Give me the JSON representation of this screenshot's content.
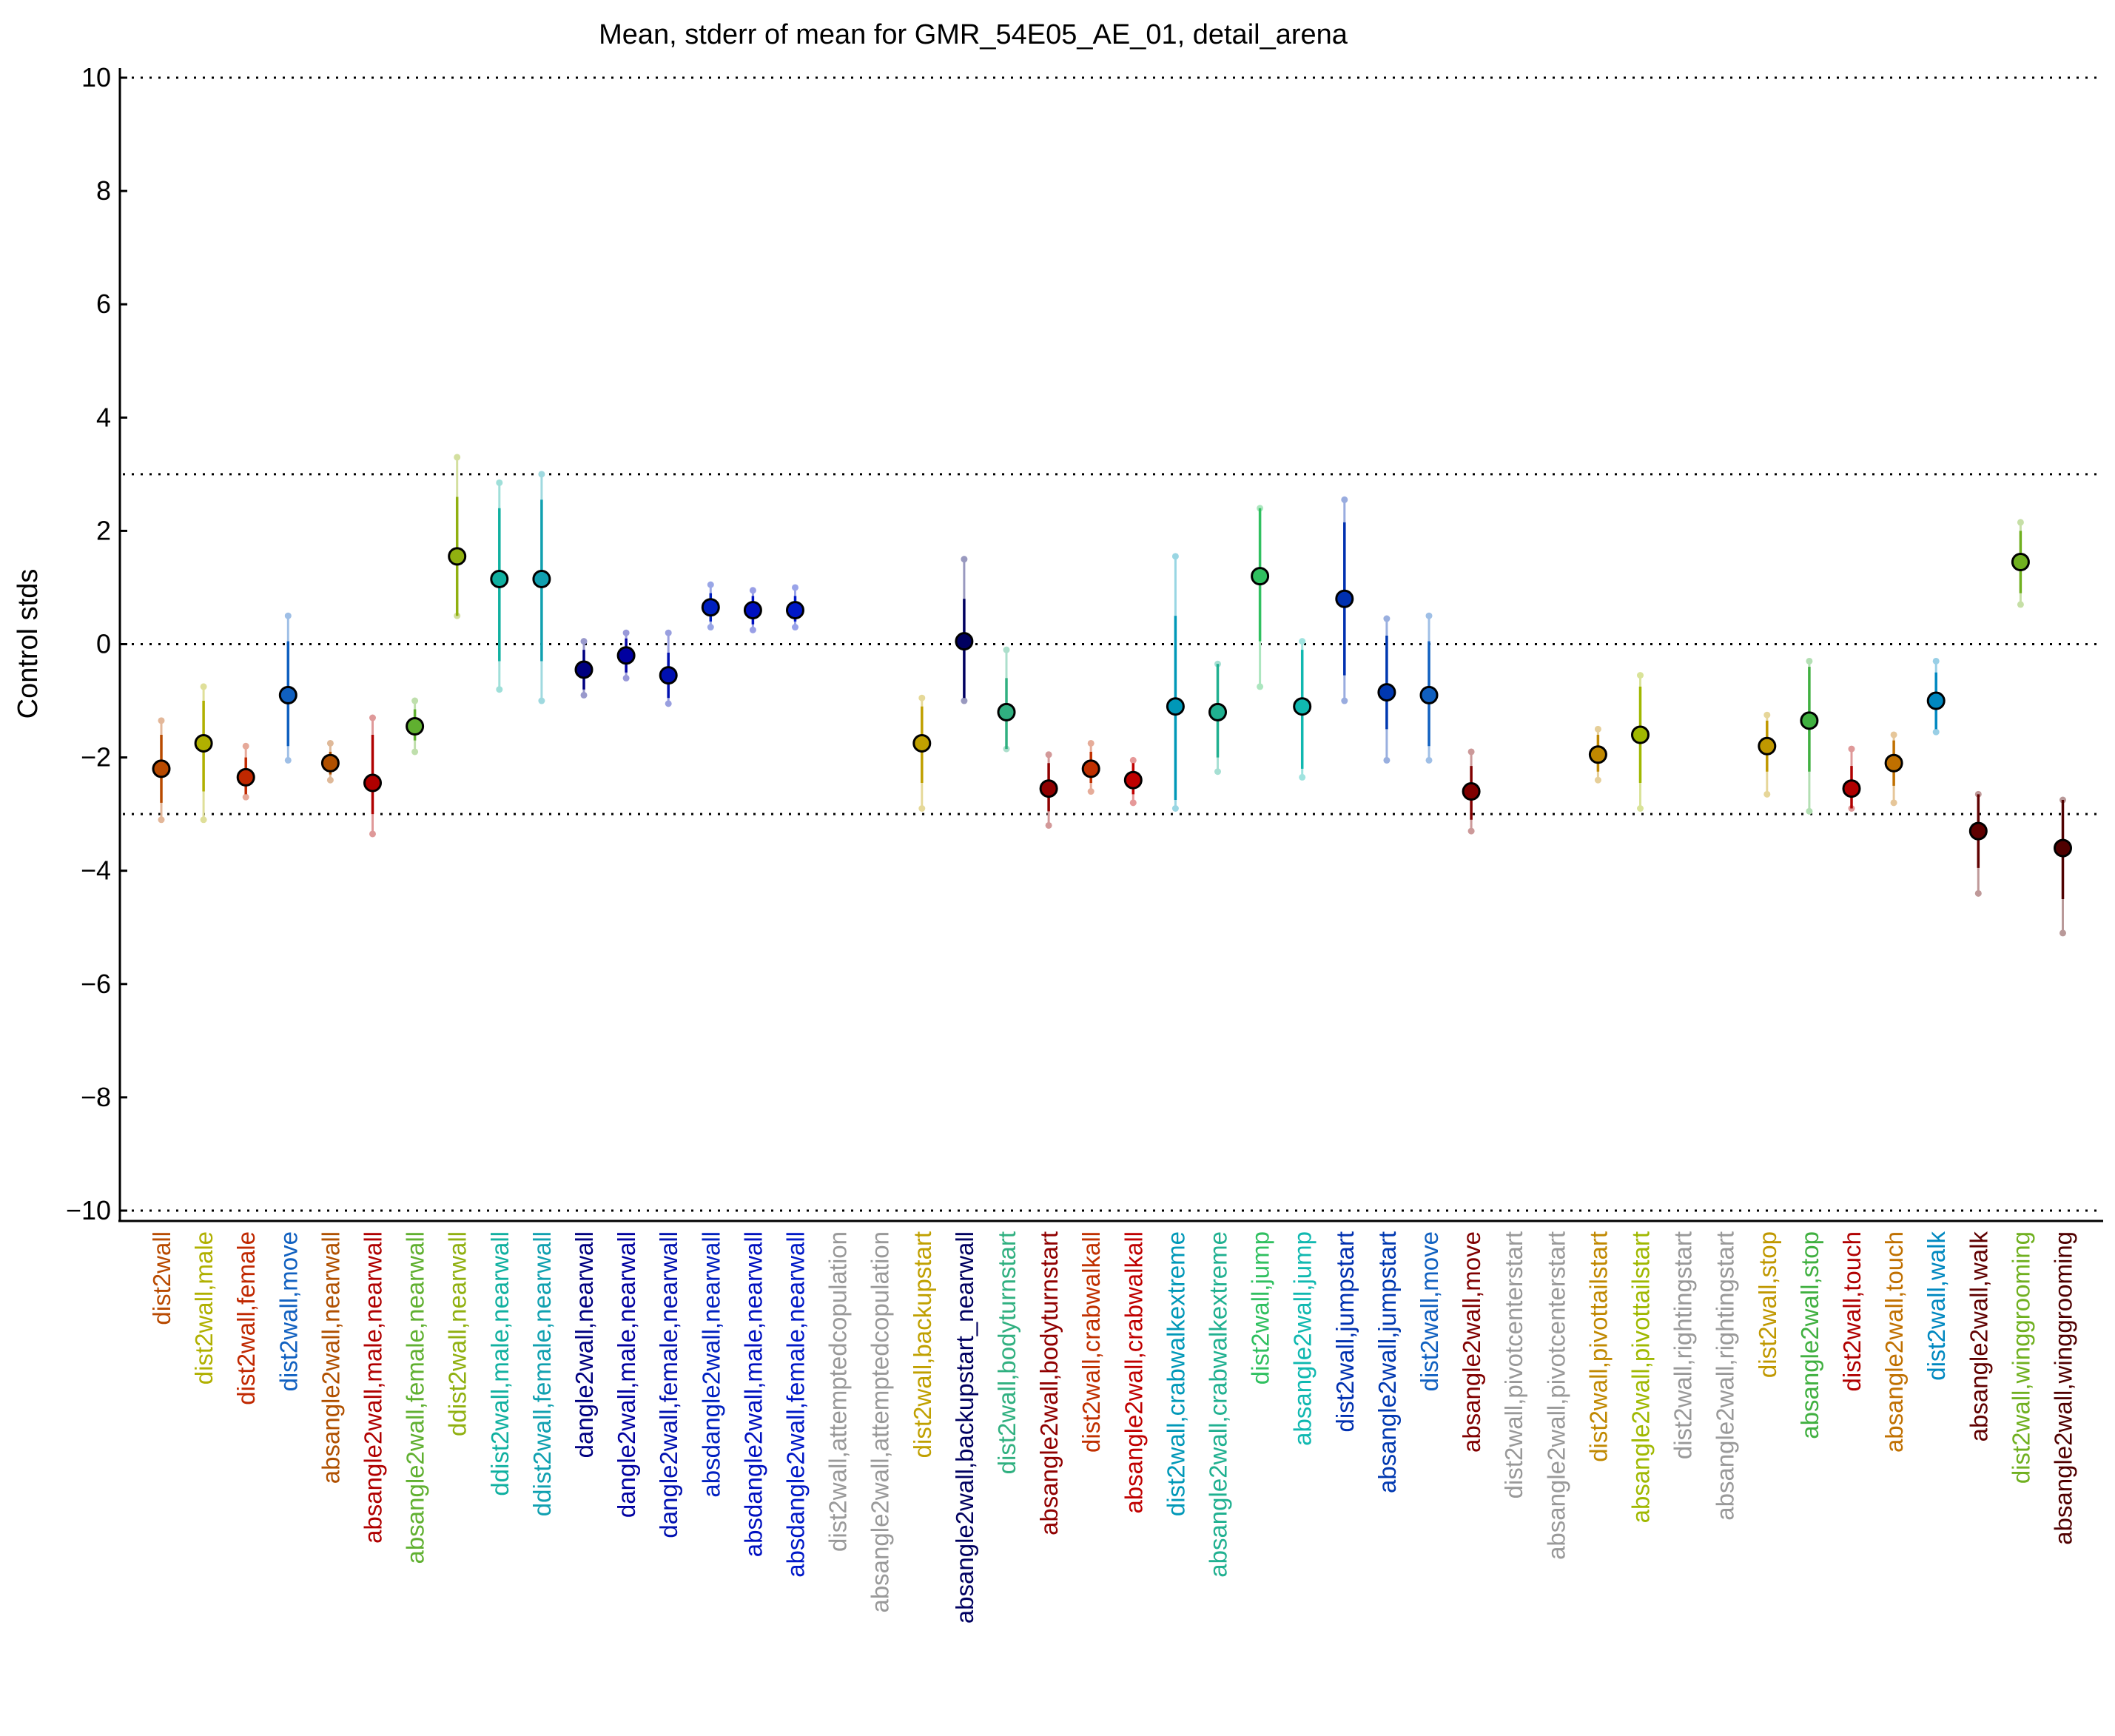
{
  "chart_data": {
    "type": "scatter",
    "title": "Mean, stderr of mean for GMR_54E05_AE_01, detail_arena",
    "xlabel": "",
    "ylabel": "Control stds",
    "ylim": [
      -10,
      10
    ],
    "yticks": [
      "10",
      "8",
      "6",
      "4",
      "2",
      "0",
      "−2",
      "−4",
      "−6",
      "−8",
      "−10"
    ],
    "reference_lines": [
      10,
      3,
      0,
      -3,
      -10
    ],
    "grid": false,
    "points": [
      {
        "label": "dist2wall",
        "mean": -2.2,
        "se_low": -2.8,
        "se_high": -1.6,
        "ext_low": -3.1,
        "ext_high": -1.35,
        "color": "#b84a00"
      },
      {
        "label": "dist2wall,male",
        "mean": -1.75,
        "se_low": -2.6,
        "se_high": -1.0,
        "ext_low": -3.1,
        "ext_high": -0.75,
        "color": "#b0b000"
      },
      {
        "label": "dist2wall,female",
        "mean": -2.35,
        "se_low": -2.65,
        "se_high": -2.0,
        "ext_low": -2.7,
        "ext_high": -1.8,
        "color": "#c02800"
      },
      {
        "label": "dist2wall,move",
        "mean": -0.9,
        "se_low": -1.8,
        "se_high": 0.05,
        "ext_low": -2.05,
        "ext_high": 0.5,
        "color": "#1060c0"
      },
      {
        "label": "absangle2wall,nearwall",
        "mean": -2.1,
        "se_low": -2.3,
        "se_high": -1.9,
        "ext_low": -2.4,
        "ext_high": -1.75,
        "color": "#b05000"
      },
      {
        "label": "absangle2wall,male,nearwall",
        "mean": -2.45,
        "se_low": -3.0,
        "se_high": -1.6,
        "ext_low": -3.35,
        "ext_high": -1.3,
        "color": "#b00000"
      },
      {
        "label": "absangle2wall,female,nearwall",
        "mean": -1.45,
        "se_low": -1.7,
        "se_high": -1.15,
        "ext_low": -1.9,
        "ext_high": -1.0,
        "color": "#60b030"
      },
      {
        "label": "ddist2wall,nearwall",
        "mean": 1.55,
        "se_low": 0.5,
        "se_high": 2.6,
        "ext_low": 0.5,
        "ext_high": 3.3,
        "color": "#90b010"
      },
      {
        "label": "ddist2wall,male,nearwall",
        "mean": 1.15,
        "se_low": -0.3,
        "se_high": 2.4,
        "ext_low": -0.8,
        "ext_high": 2.85,
        "color": "#10b0a0"
      },
      {
        "label": "ddist2wall,female,nearwall",
        "mean": 1.15,
        "se_low": -0.3,
        "se_high": 2.55,
        "ext_low": -1.0,
        "ext_high": 3.0,
        "color": "#10a0b0"
      },
      {
        "label": "dangle2wall,nearwall",
        "mean": -0.45,
        "se_low": -0.8,
        "se_high": -0.1,
        "ext_low": -0.9,
        "ext_high": 0.05,
        "color": "#000080"
      },
      {
        "label": "dangle2wall,male,nearwall",
        "mean": -0.2,
        "se_low": -0.5,
        "se_high": 0.1,
        "ext_low": -0.6,
        "ext_high": 0.2,
        "color": "#0000a0"
      },
      {
        "label": "dangle2wall,female,nearwall",
        "mean": -0.55,
        "se_low": -0.95,
        "se_high": -0.15,
        "ext_low": -1.05,
        "ext_high": 0.2,
        "color": "#0010b0"
      },
      {
        "label": "absdangle2wall,nearwall",
        "mean": 0.65,
        "se_low": 0.4,
        "se_high": 0.9,
        "ext_low": 0.3,
        "ext_high": 1.05,
        "color": "#0020c0"
      },
      {
        "label": "absdangle2wall,male,nearwall",
        "mean": 0.6,
        "se_low": 0.35,
        "se_high": 0.85,
        "ext_low": 0.25,
        "ext_high": 0.95,
        "color": "#0010c0"
      },
      {
        "label": "absdangle2wall,female,nearwall",
        "mean": 0.6,
        "se_low": 0.4,
        "se_high": 0.85,
        "ext_low": 0.3,
        "ext_high": 1.0,
        "color": "#0018c8"
      },
      {
        "label": "dist2wall,attemptedcopulation",
        "color": "#999999"
      },
      {
        "label": "absangle2wall,attemptedcopulation",
        "color": "#999999"
      },
      {
        "label": "dist2wall,backupstart",
        "mean": -1.75,
        "se_low": -2.45,
        "se_high": -1.1,
        "ext_low": -2.9,
        "ext_high": -0.95,
        "color": "#c0a000"
      },
      {
        "label": "absangle2wall,backupstart_nearwall",
        "mean": 0.05,
        "se_low": -0.95,
        "se_high": 0.8,
        "ext_low": -1.0,
        "ext_high": 1.5,
        "color": "#000060"
      },
      {
        "label": "dist2wall,bodyturnstart",
        "mean": -1.2,
        "se_low": -1.85,
        "se_high": -0.6,
        "ext_low": -1.85,
        "ext_high": -0.1,
        "color": "#30b080"
      },
      {
        "label": "absangle2wall,bodyturnstart",
        "mean": -2.55,
        "se_low": -2.95,
        "se_high": -2.1,
        "ext_low": -3.2,
        "ext_high": -1.95,
        "color": "#900000"
      },
      {
        "label": "dist2wall,crabwalkall",
        "mean": -2.2,
        "se_low": -2.45,
        "se_high": -1.9,
        "ext_low": -2.6,
        "ext_high": -1.75,
        "color": "#c03000"
      },
      {
        "label": "absangle2wall,crabwalkall",
        "mean": -2.4,
        "se_low": -2.65,
        "se_high": -2.1,
        "ext_low": -2.8,
        "ext_high": -2.05,
        "color": "#c00000"
      },
      {
        "label": "dist2wall,crabwalkextreme",
        "mean": -1.1,
        "se_low": -2.75,
        "se_high": 0.5,
        "ext_low": -2.9,
        "ext_high": 1.55,
        "color": "#0098b8"
      },
      {
        "label": "absangle2wall,crabwalkextreme",
        "mean": -1.2,
        "se_low": -2.0,
        "se_high": -0.35,
        "ext_low": -2.25,
        "ext_high": -0.35,
        "color": "#20b090"
      },
      {
        "label": "dist2wall,jump",
        "mean": 1.2,
        "se_low": 0.05,
        "se_high": 2.4,
        "ext_low": -0.75,
        "ext_high": 2.4,
        "color": "#30c060"
      },
      {
        "label": "absangle2wall,jump",
        "mean": -1.1,
        "se_low": -2.2,
        "se_high": -0.1,
        "ext_low": -2.35,
        "ext_high": 0.05,
        "color": "#10b8b0"
      },
      {
        "label": "dist2wall,jumpstart",
        "mean": 0.8,
        "se_low": -0.55,
        "se_high": 2.15,
        "ext_low": -1.0,
        "ext_high": 2.55,
        "color": "#0030b0"
      },
      {
        "label": "absangle2wall,jumpstart",
        "mean": -0.85,
        "se_low": -1.5,
        "se_high": 0.15,
        "ext_low": -2.05,
        "ext_high": 0.45,
        "color": "#0038b0"
      },
      {
        "label": "dist2wall,move",
        "mean": -0.9,
        "se_low": -1.8,
        "se_high": 0.05,
        "ext_low": -2.05,
        "ext_high": 0.5,
        "color": "#1060c0"
      },
      {
        "label": "absangle2wall,move",
        "mean": -2.6,
        "se_low": -3.1,
        "se_high": -2.15,
        "ext_low": -3.3,
        "ext_high": -1.9,
        "color": "#800000"
      },
      {
        "label": "dist2wall,pivotcenterstart",
        "color": "#999999"
      },
      {
        "label": "absangle2wall,pivotcenterstart",
        "color": "#999999"
      },
      {
        "label": "dist2wall,pivottailstart",
        "mean": -1.95,
        "se_low": -2.25,
        "se_high": -1.6,
        "ext_low": -2.4,
        "ext_high": -1.5,
        "color": "#c08800"
      },
      {
        "label": "absangle2wall,pivottailstart",
        "mean": -1.6,
        "se_low": -2.45,
        "se_high": -0.75,
        "ext_low": -2.9,
        "ext_high": -0.55,
        "color": "#a0b800"
      },
      {
        "label": "dist2wall,rightingstart",
        "color": "#999999"
      },
      {
        "label": "absangle2wall,rightingstart",
        "color": "#999999"
      },
      {
        "label": "dist2wall,stop",
        "mean": -1.8,
        "se_low": -2.25,
        "se_high": -1.35,
        "ext_low": -2.65,
        "ext_high": -1.25,
        "color": "#c09800"
      },
      {
        "label": "absangle2wall,stop",
        "mean": -1.35,
        "se_low": -2.25,
        "se_high": -0.4,
        "ext_low": -2.95,
        "ext_high": -0.3,
        "color": "#40b040"
      },
      {
        "label": "dist2wall,touch",
        "mean": -2.55,
        "se_low": -2.9,
        "se_high": -2.15,
        "ext_low": -2.9,
        "ext_high": -1.85,
        "color": "#b00000"
      },
      {
        "label": "absangle2wall,touch",
        "mean": -2.1,
        "se_low": -2.5,
        "se_high": -1.7,
        "ext_low": -2.8,
        "ext_high": -1.6,
        "color": "#c07000"
      },
      {
        "label": "dist2wall,walk",
        "mean": -1.0,
        "se_low": -1.5,
        "se_high": -0.5,
        "ext_low": -1.55,
        "ext_high": -0.3,
        "color": "#0088c0"
      },
      {
        "label": "absangle2wall,walk",
        "mean": -3.3,
        "se_low": -3.95,
        "se_high": -2.65,
        "ext_low": -4.4,
        "ext_high": -2.65,
        "color": "#600000"
      },
      {
        "label": "dist2wall,winggrooming",
        "mean": 1.45,
        "se_low": 0.9,
        "se_high": 2.0,
        "ext_low": 0.7,
        "ext_high": 2.15,
        "color": "#70b020"
      },
      {
        "label": "absangle2wall,winggrooming",
        "mean": -3.6,
        "se_low": -4.5,
        "se_high": -2.75,
        "ext_low": -5.1,
        "ext_high": -2.75,
        "color": "#500000"
      }
    ]
  }
}
